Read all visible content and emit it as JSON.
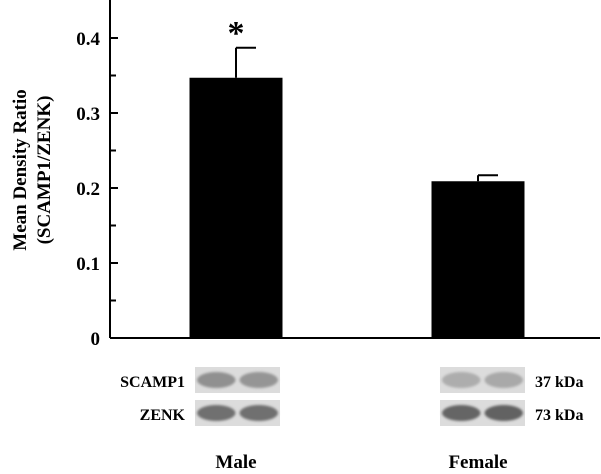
{
  "chart_data": {
    "type": "bar",
    "categories": [
      "Male",
      "Female"
    ],
    "values": [
      0.347,
      0.209
    ],
    "errors": [
      0.04,
      0.008
    ],
    "significance": [
      "*",
      ""
    ],
    "ylabel_line1": "Mean Density Ratio",
    "ylabel_line2": "(SCAMP1/ZENK)",
    "ylim": [
      0,
      0.45
    ],
    "yticks": [
      0,
      0.1,
      0.2,
      0.3,
      0.4
    ],
    "ytick_labels": [
      "0",
      "0.1",
      "0.2",
      "0.3",
      "0.4"
    ],
    "grid": false,
    "bar_color": "#000000"
  },
  "blots": {
    "rows": [
      {
        "protein": "SCAMP1",
        "size": "37 kDa",
        "male_intensity": [
          0.33,
          0.3
        ],
        "female_intensity": [
          0.16,
          0.18
        ]
      },
      {
        "protein": "ZENK",
        "size": "73 kDa",
        "male_intensity": [
          0.52,
          0.52
        ],
        "female_intensity": [
          0.58,
          0.6
        ]
      }
    ]
  }
}
